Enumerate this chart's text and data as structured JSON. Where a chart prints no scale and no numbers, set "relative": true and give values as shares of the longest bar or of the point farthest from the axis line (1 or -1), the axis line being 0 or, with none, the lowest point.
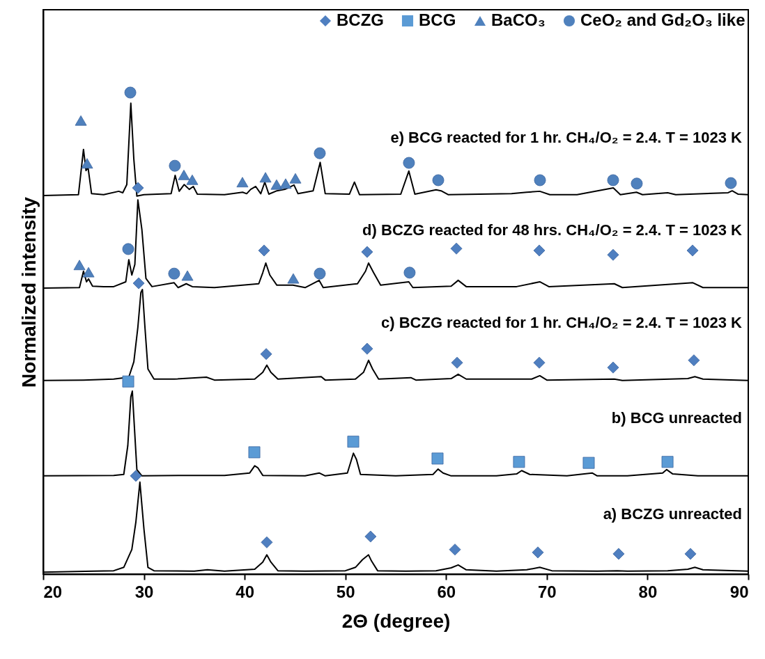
{
  "chart_data": {
    "type": "line",
    "relative": true,
    "xlabel": "2Θ (degree)",
    "ylabel": "Normalized intensity",
    "xlim": [
      20,
      90
    ],
    "xticks": [
      20,
      30,
      40,
      50,
      60,
      70,
      80,
      90
    ],
    "tick_labels": "x",
    "legend": "top right",
    "marker": "none",
    "line_style": "solid",
    "series": [
      {
        "color": "#000000",
        "x": [
          20,
          25,
          27,
          28,
          28.8,
          29.2,
          29.6,
          30.0,
          30.4,
          31,
          35,
          36.3,
          38,
          41,
          41.8,
          42.2,
          42.6,
          43.3,
          46,
          50,
          51,
          51.7,
          52.3,
          52.6,
          53.2,
          56,
          59,
          60.5,
          61.2,
          62,
          65,
          68,
          69.3,
          70.5,
          75,
          77,
          78,
          82,
          84,
          84.7,
          85.5,
          90
        ],
        "values": [
          0.004,
          0.006,
          0.007,
          0.014,
          0.051,
          0.108,
          0.191,
          0.094,
          0.014,
          0.007,
          0.006,
          0.009,
          0.006,
          0.01,
          0.025,
          0.04,
          0.025,
          0.007,
          0.006,
          0.007,
          0.014,
          0.03,
          0.04,
          0.027,
          0.007,
          0.006,
          0.007,
          0.013,
          0.019,
          0.009,
          0.006,
          0.009,
          0.014,
          0.007,
          0.006,
          0.007,
          0.006,
          0.007,
          0.01,
          0.014,
          0.009,
          0.006
        ]
      },
      {
        "color": "#000000",
        "x": [
          20,
          27,
          28,
          28.4,
          28.7,
          28.85,
          29.0,
          29.3,
          29.8,
          35,
          38,
          40.5,
          41.0,
          41.3,
          41.8,
          46,
          47.4,
          48,
          50.2,
          50.8,
          51.1,
          51.5,
          55,
          58.7,
          59.2,
          59.7,
          60.5,
          65,
          67,
          67.5,
          68.3,
          72,
          74.5,
          75,
          78,
          81.5,
          81.9,
          82.5,
          85,
          90
        ],
        "values": [
          0.204,
          0.205,
          0.207,
          0.267,
          0.368,
          0.38,
          0.325,
          0.217,
          0.204,
          0.205,
          0.205,
          0.21,
          0.225,
          0.221,
          0.205,
          0.204,
          0.21,
          0.204,
          0.21,
          0.251,
          0.238,
          0.207,
          0.204,
          0.207,
          0.218,
          0.21,
          0.204,
          0.204,
          0.208,
          0.215,
          0.207,
          0.204,
          0.21,
          0.204,
          0.204,
          0.21,
          0.217,
          0.208,
          0.204,
          0.204
        ]
      },
      {
        "color": "#000000",
        "x": [
          20,
          24,
          27,
          28.5,
          29.0,
          29.4,
          29.7,
          29.85,
          30.1,
          30.4,
          31,
          33,
          36.2,
          37,
          41,
          41.8,
          42.2,
          42.6,
          43.3,
          47.6,
          48,
          51,
          51.8,
          52.3,
          52.7,
          53.3,
          56.5,
          57,
          60.5,
          61.2,
          62,
          68.5,
          69.3,
          70,
          76.7,
          77.5,
          84,
          84.7,
          85.5,
          90
        ],
        "values": [
          0.402,
          0.403,
          0.405,
          0.409,
          0.441,
          0.513,
          0.585,
          0.591,
          0.513,
          0.426,
          0.405,
          0.405,
          0.409,
          0.403,
          0.405,
          0.419,
          0.434,
          0.419,
          0.405,
          0.41,
          0.403,
          0.405,
          0.419,
          0.444,
          0.426,
          0.405,
          0.408,
          0.403,
          0.406,
          0.415,
          0.405,
          0.405,
          0.412,
          0.403,
          0.405,
          0.402,
          0.406,
          0.41,
          0.405,
          0.402
        ]
      },
      {
        "color": "#000000",
        "x": [
          20,
          23.6,
          24.0,
          24.3,
          24.5,
          24.9,
          26,
          27,
          28.2,
          28.5,
          28.8,
          29.1,
          29.4,
          29.8,
          30.2,
          30.8,
          33.0,
          33.4,
          34.2,
          34.8,
          37,
          41.4,
          41.8,
          42.1,
          42.5,
          43.2,
          44.8,
          46,
          47.4,
          47.8,
          51.2,
          52.0,
          52.3,
          52.8,
          53.5,
          56.3,
          56.7,
          60.5,
          61.2,
          62,
          67,
          69.3,
          70.2,
          76.7,
          77.5,
          84.5,
          85.5,
          90
        ],
        "values": [
          0.594,
          0.595,
          0.629,
          0.607,
          0.613,
          0.598,
          0.597,
          0.597,
          0.607,
          0.653,
          0.621,
          0.643,
          0.777,
          0.715,
          0.614,
          0.597,
          0.605,
          0.595,
          0.603,
          0.597,
          0.595,
          0.603,
          0.626,
          0.646,
          0.621,
          0.6,
          0.6,
          0.595,
          0.61,
          0.595,
          0.603,
          0.629,
          0.646,
          0.626,
          0.6,
          0.607,
          0.595,
          0.598,
          0.61,
          0.597,
          0.597,
          0.607,
          0.597,
          0.603,
          0.595,
          0.605,
          0.595,
          0.595
        ]
      },
      {
        "color": "#000000",
        "x": [
          20,
          23.5,
          24.0,
          24.25,
          24.45,
          24.8,
          26,
          27.5,
          27.9,
          28.3,
          28.7,
          29.0,
          29.3,
          30,
          32.7,
          33.1,
          33.5,
          34.0,
          34.5,
          34.9,
          35.3,
          38,
          39.8,
          40.2,
          40.6,
          41.1,
          41.6,
          42.0,
          42.4,
          43.2,
          44.0,
          44.9,
          45.3,
          46.8,
          47.5,
          48.0,
          50.4,
          50.9,
          51.4,
          55.5,
          56.3,
          56.9,
          59.0,
          59.5,
          60.2,
          66.5,
          68.0,
          69.3,
          70.3,
          73,
          76.6,
          77.3,
          78.9,
          79.5,
          82.0,
          82.8,
          88.0,
          88.4,
          89,
          90
        ],
        "values": [
          0.786,
          0.788,
          0.882,
          0.838,
          0.845,
          0.79,
          0.788,
          0.795,
          0.792,
          0.809,
          0.978,
          0.861,
          0.785,
          0.788,
          0.79,
          0.828,
          0.795,
          0.809,
          0.799,
          0.805,
          0.789,
          0.788,
          0.793,
          0.79,
          0.799,
          0.805,
          0.79,
          0.814,
          0.789,
          0.796,
          0.799,
          0.808,
          0.79,
          0.796,
          0.855,
          0.79,
          0.789,
          0.814,
          0.788,
          0.789,
          0.837,
          0.789,
          0.798,
          0.796,
          0.788,
          0.79,
          0.793,
          0.795,
          0.788,
          0.788,
          0.802,
          0.788,
          0.793,
          0.788,
          0.792,
          0.788,
          0.792,
          0.796,
          0.789,
          0.788
        ]
      },
      {
        "type": "scatter",
        "name": "BCZG",
        "marker": "diamond",
        "color": "#4f7fc0",
        "x": [
          29.41,
          29.48,
          29.2,
          41.93,
          42.14,
          42.2,
          52.16,
          52.16,
          52.5,
          61.02,
          61.09,
          60.88,
          69.25,
          69.25,
          69.11,
          76.58,
          76.58,
          77.13,
          84.47,
          84.6,
          84.26
        ],
        "values": [
          0.802,
          0.604,
          0.204,
          0.672,
          0.457,
          0.066,
          0.669,
          0.468,
          0.078,
          0.676,
          0.439,
          0.051,
          0.672,
          0.439,
          0.045,
          0.663,
          0.429,
          0.042,
          0.672,
          0.444,
          0.042
        ]
      },
      {
        "type": "scatter",
        "name": "BCG",
        "marker": "square",
        "color": "#5b9bd5",
        "x": [
          28.44,
          40.96,
          50.78,
          59.15,
          67.24,
          74.16,
          81.98
        ],
        "values": [
          0.4,
          0.253,
          0.275,
          0.24,
          0.233,
          0.231,
          0.233
        ]
      },
      {
        "type": "scatter",
        "name": "BaCO₃",
        "marker": "triangle",
        "color": "#4f81bd",
        "x": [
          23.74,
          24.36,
          33.97,
          34.8,
          39.78,
          42.07,
          43.17,
          44.07,
          45.04,
          23.6,
          24.5,
          34.32,
          44.83
        ],
        "values": [
          0.942,
          0.853,
          0.829,
          0.819,
          0.814,
          0.824,
          0.809,
          0.811,
          0.822,
          0.642,
          0.627,
          0.62,
          0.614
        ]
      },
      {
        "type": "scatter",
        "name": "CeO₂ and Gd₂O₃ like",
        "marker": "circle",
        "color": "#4f81bd",
        "x": [
          28.65,
          33.07,
          47.46,
          56.31,
          59.22,
          69.32,
          76.58,
          78.93,
          88.27,
          28.44,
          33.0,
          47.46,
          56.38
        ],
        "values": [
          1.0,
          0.848,
          0.874,
          0.854,
          0.818,
          0.818,
          0.818,
          0.811,
          0.812,
          0.675,
          0.624,
          0.624,
          0.626
        ]
      }
    ],
    "annotations": [
      "e) BCG reacted for 1 hr. CH₄/O₂ = 2.4. T = 1023 K",
      "d) BCZG reacted for 48 hrs. CH₄/O₂ = 2.4. T = 1023 K",
      "c) BCZG reacted for 1 hr. CH₄/O₂ = 2.4. T = 1023 K",
      "b) BCG unreacted",
      "a) BCZG unreacted"
    ]
  }
}
